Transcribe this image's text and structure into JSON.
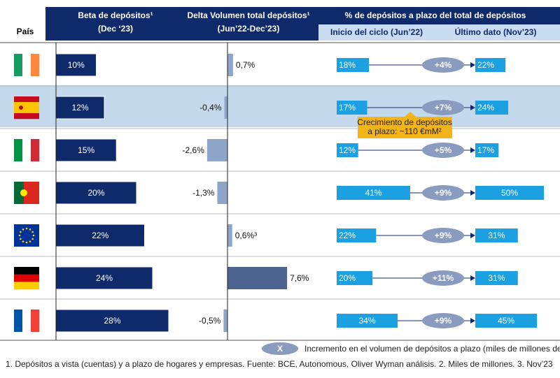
{
  "header": {
    "country": "País",
    "beta_title": "Beta de depósitos¹",
    "beta_sub": "(Dec ‘23)",
    "delta_title": "Delta Volumen total depósitos¹",
    "delta_sub": "(Jun’22-Dec’23)",
    "pct_title": "% de depósitos a plazo del total de depósitos",
    "pct_start": "Inicio del ciclo (Jun’22)",
    "pct_end": "Último dato (Nov’23)"
  },
  "beta": {
    "values": [
      10,
      12,
      15,
      20,
      22,
      24,
      28
    ],
    "value_labels": [
      "10%",
      "12%",
      "15%",
      "20%",
      "22%",
      "24%",
      "28%"
    ]
  },
  "delta": {
    "values": [
      0.7,
      -0.4,
      -2.6,
      -1.3,
      0.6,
      7.6,
      -0.5
    ],
    "value_labels": [
      "0,7%",
      "-0,4%",
      "-2,6%",
      "-1,3%",
      "0,6%³",
      "7,6%",
      "-0,5%"
    ]
  },
  "start": {
    "values": [
      18,
      17,
      12,
      41,
      22,
      20,
      34
    ],
    "value_labels": [
      "18%",
      "17%",
      "12%",
      "41%",
      "22%",
      "20%",
      "34%"
    ]
  },
  "end": {
    "values": [
      22,
      24,
      17,
      50,
      31,
      31,
      45
    ],
    "value_labels": [
      "22%",
      "24%",
      "17%",
      "50%",
      "31%",
      "31%",
      "45%"
    ]
  },
  "increment": {
    "values": [
      4,
      7,
      5,
      9,
      9,
      11,
      9
    ],
    "value_labels": [
      "+4%",
      "+7%",
      "+5%",
      "+9%",
      "+9%",
      "+11%",
      "+9%"
    ]
  },
  "callout": [
    "Crecimiento de depósitos",
    "a plazo: ~110 €mM²"
  ],
  "legend": {
    "symbol": "X",
    "text": "Incremento en el volumen de depósitos a plazo (miles de millones de euros)"
  },
  "footnote": "1. Depósitos a vista (cuentas) y a plazo de hogares y empresas.  Fuente: BCE, Autonomous, Oliver Wyman análisis. 2. Miles de millones. 3. Nov’23"
}
